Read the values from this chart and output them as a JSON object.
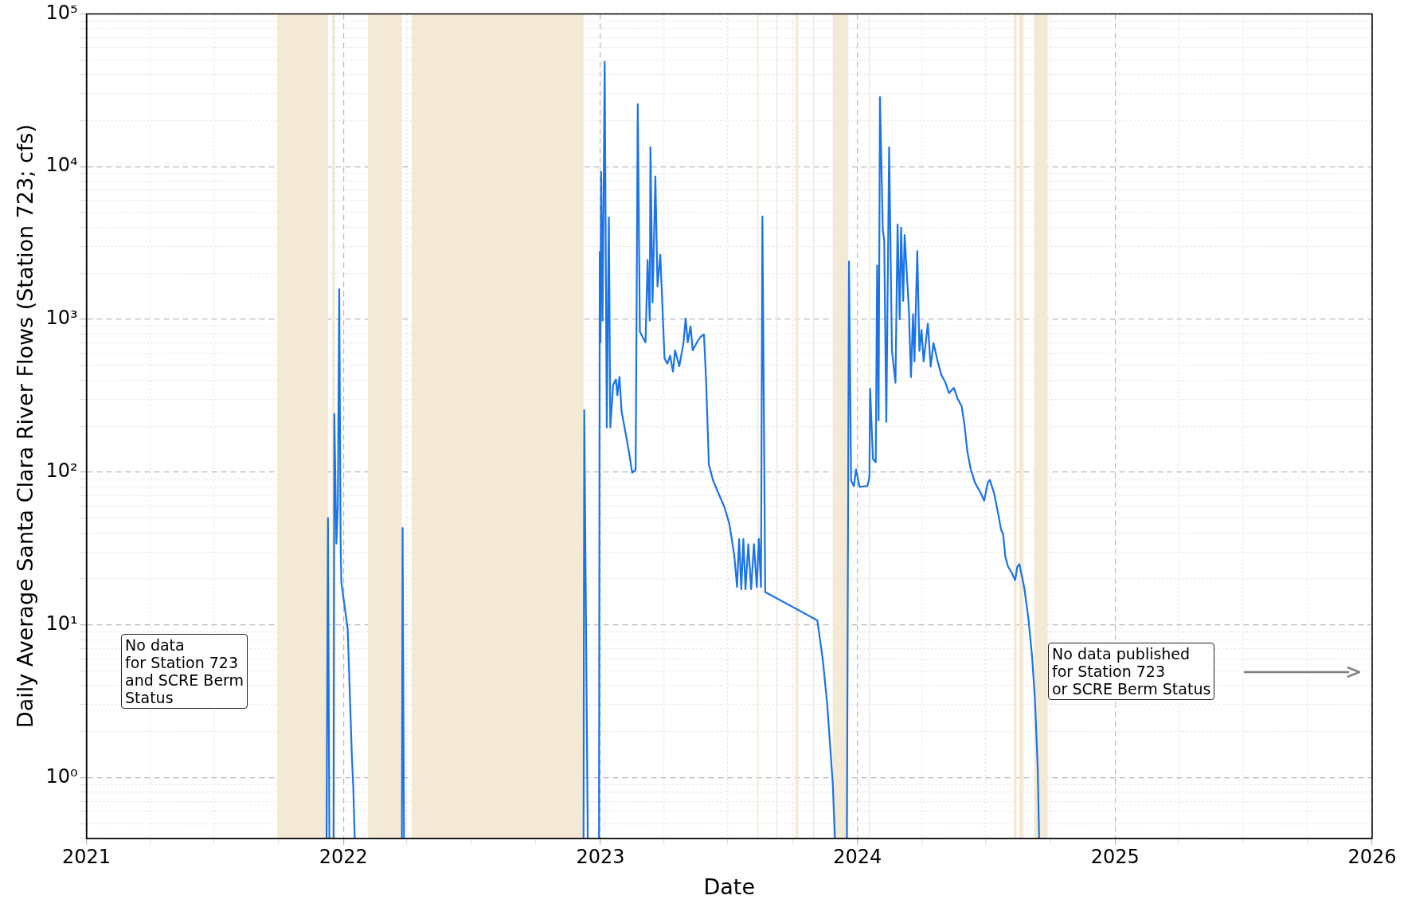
{
  "chart_data": {
    "type": "line",
    "xlabel": "Date",
    "ylabel": "Daily Average Santa Clara River Flows (Station 723; cfs)",
    "log": "y",
    "grid": true,
    "legend": false,
    "marker": "none",
    "line_style": "solid",
    "xlim": [
      "2021",
      "2026"
    ],
    "xticks": [
      "2021",
      {
        "value": "2021-04",
        "label": null
      },
      {
        "value": "2021-07",
        "label": null
      },
      {
        "value": "2021-10",
        "label": null
      },
      "2022",
      {
        "value": "2022-04",
        "label": null
      },
      {
        "value": "2022-07",
        "label": null
      },
      {
        "value": "2022-10",
        "label": null
      },
      "2023",
      {
        "value": "2023-04",
        "label": null
      },
      {
        "value": "2023-07",
        "label": null
      },
      {
        "value": "2023-10",
        "label": null
      },
      "2024",
      {
        "value": "2024-04",
        "label": null
      },
      {
        "value": "2024-07",
        "label": null
      },
      {
        "value": "2024-10",
        "label": null
      },
      "2025",
      {
        "value": "2025-04",
        "label": null
      },
      {
        "value": "2025-07",
        "label": null
      },
      {
        "value": "2025-10",
        "label": null
      },
      "2026"
    ],
    "ylim": [
      0.4,
      100000
    ],
    "yticks": [
      {
        "value": 0.4,
        "label": null
      },
      {
        "value": 0.5,
        "label": null
      },
      {
        "value": 0.6,
        "label": null
      },
      {
        "value": 0.7,
        "label": null
      },
      {
        "value": 0.8,
        "label": null
      },
      {
        "value": 0.9,
        "label": null
      },
      {
        "value": 1,
        "label": "10⁰"
      },
      {
        "value": 2,
        "label": null
      },
      {
        "value": 3,
        "label": null
      },
      {
        "value": 4,
        "label": null
      },
      {
        "value": 5,
        "label": null
      },
      {
        "value": 6,
        "label": null
      },
      {
        "value": 7,
        "label": null
      },
      {
        "value": 8,
        "label": null
      },
      {
        "value": 9,
        "label": null
      },
      {
        "value": 10,
        "label": "10¹"
      },
      {
        "value": 20,
        "label": null
      },
      {
        "value": 30,
        "label": null
      },
      {
        "value": 40,
        "label": null
      },
      {
        "value": 50,
        "label": null
      },
      {
        "value": 60,
        "label": null
      },
      {
        "value": 70,
        "label": null
      },
      {
        "value": 80,
        "label": null
      },
      {
        "value": 90,
        "label": null
      },
      {
        "value": 100,
        "label": "10²"
      },
      {
        "value": 200,
        "label": null
      },
      {
        "value": 300,
        "label": null
      },
      {
        "value": 400,
        "label": null
      },
      {
        "value": 500,
        "label": null
      },
      {
        "value": 600,
        "label": null
      },
      {
        "value": 700,
        "label": null
      },
      {
        "value": 800,
        "label": null
      },
      {
        "value": 900,
        "label": null
      },
      {
        "value": 1000,
        "label": "10³"
      },
      {
        "value": 2000,
        "label": null
      },
      {
        "value": 3000,
        "label": null
      },
      {
        "value": 4000,
        "label": null
      },
      {
        "value": 5000,
        "label": null
      },
      {
        "value": 6000,
        "label": null
      },
      {
        "value": 7000,
        "label": null
      },
      {
        "value": 8000,
        "label": null
      },
      {
        "value": 9000,
        "label": null
      },
      {
        "value": 10000,
        "label": "10⁴"
      },
      {
        "value": 20000,
        "label": null
      },
      {
        "value": 30000,
        "label": null
      },
      {
        "value": 40000,
        "label": null
      },
      {
        "value": 50000,
        "label": null
      },
      {
        "value": 60000,
        "label": null
      },
      {
        "value": 70000,
        "label": null
      },
      {
        "value": 80000,
        "label": null
      },
      {
        "value": 90000,
        "label": null
      },
      {
        "value": 100000,
        "label": "10⁵"
      }
    ],
    "bands": [
      {
        "axis": "x",
        "from": "2021-09-29",
        "to": "2021-12-10",
        "color": "#f3e9d4"
      },
      {
        "axis": "x",
        "from": "2021-12-16",
        "to": "2021-12-20",
        "color": "#f3e9d4"
      },
      {
        "axis": "x",
        "from": "2022-02-05",
        "to": "2022-03-25",
        "color": "#f3e9d4"
      },
      {
        "axis": "x",
        "from": "2022-04-08",
        "to": "2022-12-08",
        "color": "#f3e9d4"
      },
      {
        "axis": "x",
        "from": "2023-08-12",
        "to": "2023-08-13",
        "color": "#f3e9d4"
      },
      {
        "axis": "x",
        "from": "2023-09-08",
        "to": "2023-09-09",
        "color": "#f3e9d4"
      },
      {
        "axis": "x",
        "from": "2023-10-05",
        "to": "2023-10-09",
        "color": "#f3e9d4"
      },
      {
        "axis": "x",
        "from": "2023-10-30",
        "to": "2023-10-31",
        "color": "#f3e9d4"
      },
      {
        "axis": "x",
        "from": "2023-11-27",
        "to": "2023-12-19",
        "color": "#f3e9d4"
      },
      {
        "axis": "x",
        "from": "2024-01-17",
        "to": "2024-01-18",
        "color": "#f3e9d4"
      },
      {
        "axis": "x",
        "from": "2024-08-10",
        "to": "2024-08-14",
        "color": "#f3e9d4"
      },
      {
        "axis": "x",
        "from": "2024-08-18",
        "to": "2024-08-24",
        "color": "#f3e9d4"
      },
      {
        "axis": "x",
        "from": "2024-09-08",
        "to": "2024-09-27",
        "color": "#f3e9d4"
      }
    ],
    "annotations": [
      "No data\nfor Station 723\nand SCRE Berm\nStatus",
      "No data published\nfor Station 723\nor SCRE Berm Status"
    ],
    "series": [
      {
        "color": "#1a73e8",
        "x": [
          "2021-12-08",
          "2021-12-10",
          "2021-12-12",
          "2021-12-18",
          "2021-12-19",
          "2021-12-22",
          "2021-12-24",
          "2021-12-26",
          "2021-12-28",
          "2021-12-29",
          "2022-01-07",
          "2022-01-13",
          "2022-01-15",
          "2022-01-17",
          "2022-02-15",
          "2022-03-25",
          "2022-03-26",
          "2022-03-28",
          "2022-06-01",
          "2022-12-08",
          "2022-12-09",
          "2022-12-14",
          "2022-12-20",
          "2022-12-30",
          "2022-12-31",
          "2023-01-01",
          "2023-01-02",
          "2023-01-04",
          "2023-01-07",
          "2023-01-10",
          "2023-01-13",
          "2023-01-15",
          "2023-01-19",
          "2023-01-23",
          "2023-01-25",
          "2023-01-28",
          "2023-01-31",
          "2023-02-07",
          "2023-02-11",
          "2023-02-15",
          "2023-02-20",
          "2023-02-23",
          "2023-02-26",
          "2023-03-02",
          "2023-03-06",
          "2023-03-09",
          "2023-03-12",
          "2023-03-13",
          "2023-03-16",
          "2023-03-20",
          "2023-03-23",
          "2023-03-27",
          "2023-04-02",
          "2023-04-06",
          "2023-04-10",
          "2023-04-14",
          "2023-04-17",
          "2023-04-23",
          "2023-04-29",
          "2023-05-02",
          "2023-05-05",
          "2023-05-09",
          "2023-05-12",
          "2023-05-18",
          "2023-05-23",
          "2023-05-28",
          "2023-05-31",
          "2023-06-04",
          "2023-06-10",
          "2023-06-18",
          "2023-06-26",
          "2023-07-03",
          "2023-07-10",
          "2023-07-14",
          "2023-07-17",
          "2023-07-20",
          "2023-07-23",
          "2023-07-26",
          "2023-07-30",
          "2023-08-03",
          "2023-08-07",
          "2023-08-11",
          "2023-08-14",
          "2023-08-17",
          "2023-08-19",
          "2023-08-23",
          "2023-11-05",
          "2023-11-11",
          "2023-11-13",
          "2023-11-19",
          "2023-11-27",
          "2023-11-30",
          "2023-12-08",
          "2023-12-17",
          "2023-12-20",
          "2023-12-23",
          "2023-12-27",
          "2023-12-30",
          "2024-01-04",
          "2024-01-15",
          "2024-01-18",
          "2024-01-19",
          "2024-01-23",
          "2024-01-27",
          "2024-01-29",
          "2024-01-31",
          "2024-02-02",
          "2024-02-06",
          "2024-02-08",
          "2024-02-11",
          "2024-02-15",
          "2024-02-19",
          "2024-02-24",
          "2024-02-27",
          "2024-03-01",
          "2024-03-03",
          "2024-03-06",
          "2024-03-08",
          "2024-03-14",
          "2024-03-17",
          "2024-03-20",
          "2024-03-22",
          "2024-03-26",
          "2024-03-29",
          "2024-04-01",
          "2024-04-04",
          "2024-04-10",
          "2024-04-14",
          "2024-04-18",
          "2024-04-24",
          "2024-04-29",
          "2024-05-05",
          "2024-05-10",
          "2024-05-17",
          "2024-05-22",
          "2024-05-28",
          "2024-06-01",
          "2024-06-05",
          "2024-06-10",
          "2024-06-16",
          "2024-06-24",
          "2024-06-29",
          "2024-07-04",
          "2024-07-07",
          "2024-07-13",
          "2024-07-19",
          "2024-07-23",
          "2024-07-26",
          "2024-07-29",
          "2024-08-02",
          "2024-08-07",
          "2024-08-12",
          "2024-08-15",
          "2024-08-18",
          "2024-08-25",
          "2024-08-31",
          "2024-09-05",
          "2024-09-09",
          "2024-09-13",
          "2024-09-15"
        ],
        "values": [
          0.4,
          50,
          0.4,
          0.4,
          240,
          34,
          60,
          1570,
          34,
          19,
          9.4,
          1.37,
          0.85,
          0.4,
          null,
          0.4,
          43,
          0.4,
          null,
          0.4,
          254,
          0.4,
          null,
          0.4,
          2760,
          710,
          9200,
          980,
          48600,
          196,
          4650,
          196,
          372,
          404,
          318,
          420,
          250,
          167,
          131,
          99,
          104,
          25600,
          830,
          766,
          707,
          2450,
          980,
          13400,
          1290,
          8610,
          1640,
          2650,
          556,
          513,
          578,
          455,
          627,
          493,
          707,
          1014,
          707,
          900,
          627,
          707,
          766,
          798,
          404,
          112,
          88,
          72,
          59,
          46,
          28.7,
          17.7,
          36.5,
          17.1,
          36.5,
          17.1,
          33.7,
          17.1,
          33.7,
          17.7,
          36.5,
          17.7,
          4720,
          16.4,
          10.7,
          6.8,
          5.8,
          3.04,
          0.91,
          0.4,
          null,
          0.4,
          2390,
          88,
          81,
          104,
          80,
          81,
          92,
          351,
          122,
          116,
          2250,
          218,
          28500,
          3860,
          3290,
          213,
          13400,
          621,
          385,
          4180,
          1000,
          3990,
          1320,
          3570,
          1170,
          418,
          1080,
          530,
          2800,
          621,
          853,
          530,
          938,
          490,
          700,
          530,
          435,
          385,
          329,
          356,
          304,
          270,
          204,
          137,
          104,
          85,
          73,
          65,
          85,
          89,
          73,
          53,
          42,
          39,
          28,
          24,
          22,
          19.6,
          24,
          25,
          17.4,
          10.8,
          6.2,
          3.3,
          1.17,
          0.4
        ]
      }
    ]
  }
}
